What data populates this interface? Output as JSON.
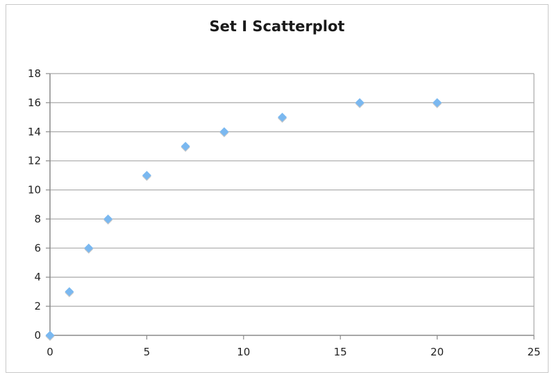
{
  "chart_data": {
    "type": "scatter",
    "title": "Set I Scatterplot",
    "xlabel": "",
    "ylabel": "",
    "xlim": [
      0,
      25
    ],
    "ylim": [
      0,
      18
    ],
    "x_ticks": [
      0,
      5,
      10,
      15,
      20,
      25
    ],
    "y_ticks": [
      0,
      2,
      4,
      6,
      8,
      10,
      12,
      14,
      16,
      18
    ],
    "grid": "horizontal",
    "legend": "none",
    "series": [
      {
        "color": "#7ab8f0",
        "points": [
          {
            "x": 0,
            "y": 0
          },
          {
            "x": 1,
            "y": 3
          },
          {
            "x": 2,
            "y": 6
          },
          {
            "x": 3,
            "y": 8
          },
          {
            "x": 5,
            "y": 11
          },
          {
            "x": 7,
            "y": 13
          },
          {
            "x": 9,
            "y": 14
          },
          {
            "x": 12,
            "y": 15
          },
          {
            "x": 16,
            "y": 16
          },
          {
            "x": 20,
            "y": 16
          }
        ]
      }
    ]
  }
}
